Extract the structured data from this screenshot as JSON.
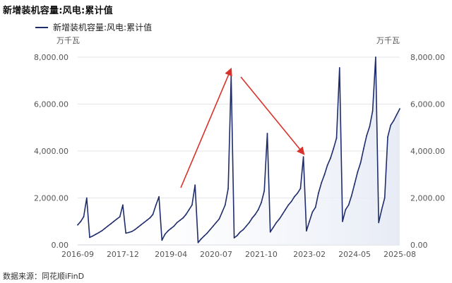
{
  "page": {
    "title": "新增装机容量:风电:累计值",
    "source": "数据来源：同花顺iFinD"
  },
  "chart_data": {
    "type": "line",
    "title": "新增装机容量:风电:累计值",
    "unit_left": "万千瓦",
    "unit_right": "万千瓦",
    "ylim": [
      0,
      8000
    ],
    "yticks": [
      "0.00",
      "2,000.00",
      "4,000.00",
      "6,000.00",
      "8,000.00"
    ],
    "ytick_values": [
      0,
      2000,
      4000,
      6000,
      8000
    ],
    "xticks": [
      "2016-09",
      "2017-12",
      "2019-04",
      "2020-07",
      "2021-10",
      "2023-02",
      "2024-05",
      "2025-08"
    ],
    "grid": "horizontal",
    "legend": "top-left",
    "colors": {
      "line": "#1f2d6b",
      "arrow": "#d9322b",
      "area": "#eef1f8"
    },
    "series": [
      {
        "name": "新增装机容量:风电:累计值",
        "x": [
          "2016-09",
          "2016-10",
          "2016-11",
          "2016-12",
          "2017-01",
          "2017-02",
          "2017-03",
          "2017-04",
          "2017-05",
          "2017-06",
          "2017-07",
          "2017-08",
          "2017-09",
          "2017-10",
          "2017-11",
          "2017-12",
          "2018-01",
          "2018-02",
          "2018-03",
          "2018-04",
          "2018-05",
          "2018-06",
          "2018-07",
          "2018-08",
          "2018-09",
          "2018-10",
          "2018-11",
          "2018-12",
          "2019-01",
          "2019-02",
          "2019-03",
          "2019-04",
          "2019-05",
          "2019-06",
          "2019-07",
          "2019-08",
          "2019-09",
          "2019-10",
          "2019-11",
          "2019-12",
          "2020-01",
          "2020-02",
          "2020-03",
          "2020-04",
          "2020-05",
          "2020-06",
          "2020-07",
          "2020-08",
          "2020-09",
          "2020-10",
          "2020-11",
          "2020-12",
          "2021-01",
          "2021-02",
          "2021-03",
          "2021-04",
          "2021-05",
          "2021-06",
          "2021-07",
          "2021-08",
          "2021-09",
          "2021-10",
          "2021-11",
          "2021-12",
          "2022-01",
          "2022-02",
          "2022-03",
          "2022-04",
          "2022-05",
          "2022-06",
          "2022-07",
          "2022-08",
          "2022-09",
          "2022-10",
          "2022-11",
          "2022-12",
          "2023-01",
          "2023-02",
          "2023-03",
          "2023-04",
          "2023-05",
          "2023-06",
          "2023-07",
          "2023-08",
          "2023-09",
          "2023-10",
          "2023-11",
          "2023-12",
          "2024-01",
          "2024-02",
          "2024-03",
          "2024-04",
          "2024-05",
          "2024-06",
          "2024-07",
          "2024-08",
          "2024-09",
          "2024-10",
          "2024-11",
          "2024-12",
          "2025-01",
          "2025-02",
          "2025-03",
          "2025-04",
          "2025-05",
          "2025-06",
          "2025-07",
          "2025-08"
        ],
        "values": [
          850,
          1000,
          1200,
          2000,
          320,
          380,
          450,
          520,
          600,
          700,
          800,
          900,
          1000,
          1100,
          1200,
          1700,
          500,
          530,
          570,
          650,
          750,
          850,
          950,
          1050,
          1150,
          1300,
          1700,
          2050,
          200,
          450,
          600,
          700,
          800,
          950,
          1050,
          1150,
          1300,
          1500,
          1700,
          2550,
          100,
          250,
          380,
          500,
          650,
          800,
          950,
          1100,
          1400,
          1700,
          2400,
          7200,
          300,
          400,
          550,
          650,
          800,
          950,
          1150,
          1300,
          1500,
          1800,
          2300,
          4750,
          550,
          750,
          950,
          1100,
          1300,
          1500,
          1700,
          1850,
          2050,
          2200,
          2400,
          3750,
          600,
          1000,
          1400,
          1600,
          2200,
          2650,
          3000,
          3400,
          3700,
          4100,
          4550,
          7550,
          1000,
          1500,
          1700,
          2100,
          2600,
          3100,
          3500,
          4100,
          4650,
          5050,
          5700,
          8000,
          950,
          1500,
          2000,
          4600,
          5100,
          5300,
          5550,
          5800
        ]
      }
    ]
  }
}
